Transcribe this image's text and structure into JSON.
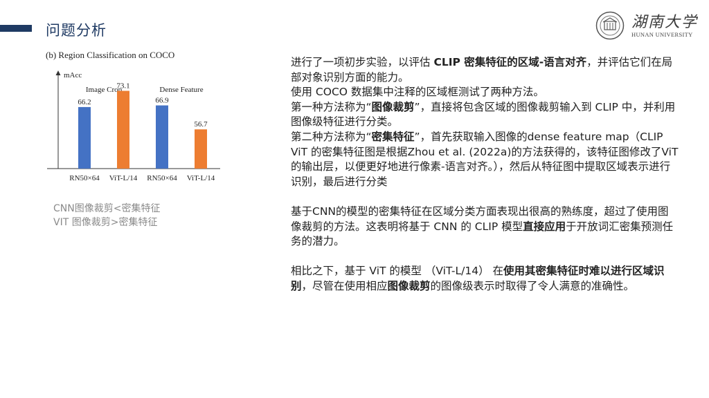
{
  "header": {
    "title": "问题分析"
  },
  "logo": {
    "cn": "湖南大学",
    "en": "HUNAN UNIVERSITY"
  },
  "chart_data": {
    "type": "bar",
    "title": "(b) Region Classification on COCO",
    "ylabel": "mAcc",
    "group_labels": [
      "Image Crop",
      "Dense Feature"
    ],
    "categories": [
      "RN50×64",
      "ViT-L/14",
      "RN50×64",
      "ViT-L/14"
    ],
    "values": [
      66.2,
      73.1,
      66.9,
      56.7
    ],
    "value_labels": [
      "66.2",
      "73.1",
      "66.9",
      "56.7"
    ],
    "colors": [
      "#4472c4",
      "#ed7d31",
      "#4472c4",
      "#ed7d31"
    ],
    "ylim": [
      40,
      80
    ],
    "grid": false,
    "legend": "none"
  },
  "caption": {
    "line1": "CNN图像裁剪<密集特征",
    "line2": "VIT 图像裁剪>密集特征"
  },
  "content": {
    "p1": [
      {
        "t": "进行了一项初步实验，以评估 "
      },
      {
        "t": "CLIP 密集特征的区域-语言对齐",
        "b": true
      },
      {
        "t": "，并评估它们在局部对象识别方面的能力。"
      }
    ],
    "p2": [
      {
        "t": "使用 COCO 数据集中注释的区域框测试了两种方法。"
      }
    ],
    "p3": [
      {
        "t": "第一种方法称为“"
      },
      {
        "t": "图像裁剪",
        "b": true
      },
      {
        "t": "”，直接将包含区域的图像裁剪输入到 CLIP 中，并利用图像级特征进行分类。"
      }
    ],
    "p4": [
      {
        "t": "第二种方法称为“"
      },
      {
        "t": "密集特征",
        "b": true
      },
      {
        "t": "”，首先获取输入图像的dense feature map（CLIP ViT 的密集特征图是根据Zhou et al. (2022a)的方法获得的，该特征图修改了ViT的输出层，以便更好地进行像素-语言对齐。），然后从特征图中提取区域表示进行识别，最后进行分类"
      }
    ],
    "p5": [
      {
        "t": "基于CNN的模型的密集特征在区域分类方面表现出很高的熟练度，超过了使用图像裁剪的方法。这表明将基于 CNN 的 CLIP 模型"
      },
      {
        "t": "直接应用",
        "b": true
      },
      {
        "t": "于开放词汇密集预测任务的潜力。"
      }
    ],
    "p6": [
      {
        "t": "相比之下，基于 ViT 的模型 （ViT-L/14） 在"
      },
      {
        "t": "使用其密集特征时难以进行区域识别",
        "b": true
      },
      {
        "t": "，尽管在使用相应"
      },
      {
        "t": "图像裁剪",
        "b": true
      },
      {
        "t": "的图像级表示时取得了令人满意的准确性。"
      }
    ]
  }
}
